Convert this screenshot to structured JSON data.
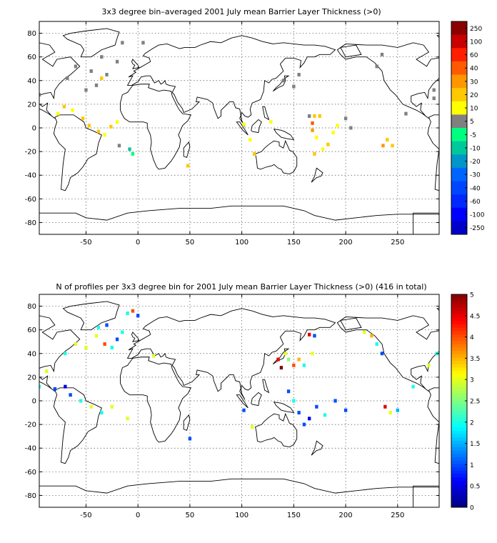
{
  "figure": {
    "panels": [
      {
        "id": "top",
        "title": "3x3 degree bin–averaged 2001 July mean Barrier Layer Thickness (>0)",
        "x_ticks": [
          "-50",
          "0",
          "50",
          "100",
          "150",
          "200",
          "250"
        ],
        "y_ticks": [
          "80",
          "60",
          "40",
          "20",
          "0",
          "-20",
          "-40",
          "-60",
          "-80"
        ],
        "colorbar": {
          "type": "discrete",
          "labels": [
            "250",
            "100",
            "60",
            "40",
            "30",
            "20",
            "10",
            "5",
            "-5",
            "-10",
            "-20",
            "-30",
            "-40",
            "-60",
            "-100",
            "-250"
          ],
          "colors": [
            "#8b0000",
            "#c80000",
            "#ff1e00",
            "#ff5a00",
            "#ff9600",
            "#ffc800",
            "#ffff00",
            "#808080",
            "#00ff80",
            "#00c89c",
            "#0096c8",
            "#0064ff",
            "#0046ff",
            "#0028ff",
            "#0000ff",
            "#0000c8"
          ]
        },
        "bins": [
          {
            "lon": -95,
            "lat": 28,
            "color": "#808080"
          },
          {
            "lon": -77,
            "lat": 12,
            "color": "#ffff00"
          },
          {
            "lon": -71,
            "lat": 18,
            "color": "#ffc800"
          },
          {
            "lon": -63,
            "lat": 15,
            "color": "#ffff00"
          },
          {
            "lon": -53,
            "lat": 8,
            "color": "#ffc800"
          },
          {
            "lon": -47,
            "lat": 2,
            "color": "#ffc800"
          },
          {
            "lon": -38,
            "lat": -3,
            "color": "#ffc800"
          },
          {
            "lon": -32,
            "lat": -6,
            "color": "#ffff00"
          },
          {
            "lon": -26,
            "lat": 1,
            "color": "#ffc800"
          },
          {
            "lon": -20,
            "lat": 5,
            "color": "#ffff00"
          },
          {
            "lon": -8,
            "lat": -18,
            "color": "#00c89c"
          },
          {
            "lon": -5,
            "lat": -22,
            "color": "#00ff80"
          },
          {
            "lon": -35,
            "lat": 42,
            "color": "#ffc800"
          },
          {
            "lon": -18,
            "lat": -15,
            "color": "#808080"
          },
          {
            "lon": -35,
            "lat": 60,
            "color": "#808080"
          },
          {
            "lon": -20,
            "lat": 56,
            "color": "#808080"
          },
          {
            "lon": -15,
            "lat": 72,
            "color": "#808080"
          },
          {
            "lon": 5,
            "lat": 72,
            "color": "#808080"
          },
          {
            "lon": -45,
            "lat": 48,
            "color": "#808080"
          },
          {
            "lon": -30,
            "lat": 45,
            "color": "#808080"
          },
          {
            "lon": -40,
            "lat": 36,
            "color": "#808080"
          },
          {
            "lon": -60,
            "lat": 52,
            "color": "#808080"
          },
          {
            "lon": -68,
            "lat": 42,
            "color": "#808080"
          },
          {
            "lon": -50,
            "lat": 32,
            "color": "#808080"
          },
          {
            "lon": 48,
            "lat": -32,
            "color": "#ffc800"
          },
          {
            "lon": 102,
            "lat": 3,
            "color": "#ffff00"
          },
          {
            "lon": 108,
            "lat": -10,
            "color": "#ffff00"
          },
          {
            "lon": 112,
            "lat": -22,
            "color": "#ffc800"
          },
          {
            "lon": 128,
            "lat": 5,
            "color": "#ffff00"
          },
          {
            "lon": 140,
            "lat": 40,
            "color": "#808080"
          },
          {
            "lon": 150,
            "lat": 35,
            "color": "#808080"
          },
          {
            "lon": 155,
            "lat": 45,
            "color": "#808080"
          },
          {
            "lon": 165,
            "lat": 10,
            "color": "#808080"
          },
          {
            "lon": 168,
            "lat": 4,
            "color": "#ff5a00"
          },
          {
            "lon": 170,
            "lat": 10,
            "color": "#ffc800"
          },
          {
            "lon": 175,
            "lat": 10,
            "color": "#ffc800"
          },
          {
            "lon": 168,
            "lat": -2,
            "color": "#ff9600"
          },
          {
            "lon": 172,
            "lat": -8,
            "color": "#ffff00"
          },
          {
            "lon": 178,
            "lat": -18,
            "color": "#ffff00"
          },
          {
            "lon": 183,
            "lat": -14,
            "color": "#ffc800"
          },
          {
            "lon": 188,
            "lat": -4,
            "color": "#ffff00"
          },
          {
            "lon": 192,
            "lat": 2,
            "color": "#ffff00"
          },
          {
            "lon": 200,
            "lat": 8,
            "color": "#808080"
          },
          {
            "lon": 205,
            "lat": 0,
            "color": "#808080"
          },
          {
            "lon": 170,
            "lat": -22,
            "color": "#ffc800"
          },
          {
            "lon": 240,
            "lat": -10,
            "color": "#ffc800"
          },
          {
            "lon": 236,
            "lat": -15,
            "color": "#ff9600"
          },
          {
            "lon": 245,
            "lat": -15,
            "color": "#ffc800"
          },
          {
            "lon": 258,
            "lat": 12,
            "color": "#808080"
          },
          {
            "lon": 235,
            "lat": 62,
            "color": "#808080"
          },
          {
            "lon": 230,
            "lat": 52,
            "color": "#808080"
          },
          {
            "lon": 285,
            "lat": 25,
            "color": "#808080"
          },
          {
            "lon": 285,
            "lat": 32,
            "color": "#808080"
          }
        ]
      },
      {
        "id": "bottom",
        "title": "N of profiles per 3x3 degree bin for 2001 July mean Barrier Layer Thickness (>0) (416 in total)",
        "x_ticks": [
          "-50",
          "0",
          "50",
          "100",
          "150",
          "200",
          "250"
        ],
        "y_ticks": [
          "80",
          "60",
          "40",
          "20",
          "0",
          "-20",
          "-40",
          "-60",
          "-80"
        ],
        "colorbar": {
          "type": "continuous",
          "labels": [
            "5",
            "4.5",
            "4",
            "3.5",
            "3",
            "2.5",
            "2",
            "1.5",
            "1",
            "0.5",
            "0"
          ],
          "min": 0,
          "max": 5
        },
        "bins": [
          {
            "lon": -10,
            "lat": 74,
            "n": 2
          },
          {
            "lon": -5,
            "lat": 76,
            "n": 4
          },
          {
            "lon": 0,
            "lat": 72,
            "n": 1
          },
          {
            "lon": -38,
            "lat": 62,
            "n": 2
          },
          {
            "lon": -30,
            "lat": 64,
            "n": 1
          },
          {
            "lon": -40,
            "lat": 55,
            "n": 3
          },
          {
            "lon": -32,
            "lat": 48,
            "n": 4
          },
          {
            "lon": -25,
            "lat": 45,
            "n": 2
          },
          {
            "lon": -20,
            "lat": 52,
            "n": 1
          },
          {
            "lon": -15,
            "lat": 58,
            "n": 2
          },
          {
            "lon": -50,
            "lat": 45,
            "n": 3
          },
          {
            "lon": -60,
            "lat": 48,
            "n": 3
          },
          {
            "lon": -70,
            "lat": 40,
            "n": 2
          },
          {
            "lon": -88,
            "lat": 25,
            "n": 3
          },
          {
            "lon": -95,
            "lat": 12,
            "n": 2
          },
          {
            "lon": -80,
            "lat": 10,
            "n": 1
          },
          {
            "lon": -70,
            "lat": 12,
            "n": 0.5
          },
          {
            "lon": -65,
            "lat": 5,
            "n": 1
          },
          {
            "lon": -55,
            "lat": 0,
            "n": 2
          },
          {
            "lon": -45,
            "lat": -5,
            "n": 3
          },
          {
            "lon": -35,
            "lat": -10,
            "n": 2
          },
          {
            "lon": -25,
            "lat": -5,
            "n": 3
          },
          {
            "lon": -10,
            "lat": -15,
            "n": 3
          },
          {
            "lon": 15,
            "lat": 38,
            "n": 3
          },
          {
            "lon": 50,
            "lat": -32,
            "n": 1
          },
          {
            "lon": 102,
            "lat": -8,
            "n": 1
          },
          {
            "lon": 110,
            "lat": -22,
            "n": 3
          },
          {
            "lon": 135,
            "lat": 35,
            "n": 4.5
          },
          {
            "lon": 138,
            "lat": 28,
            "n": 5
          },
          {
            "lon": 142,
            "lat": 40,
            "n": 3
          },
          {
            "lon": 145,
            "lat": 35,
            "n": 2.5
          },
          {
            "lon": 150,
            "lat": 30,
            "n": 4
          },
          {
            "lon": 155,
            "lat": 35,
            "n": 3.5
          },
          {
            "lon": 160,
            "lat": 30,
            "n": 2
          },
          {
            "lon": 168,
            "lat": 40,
            "n": 3
          },
          {
            "lon": 165,
            "lat": 56,
            "n": 4.5
          },
          {
            "lon": 170,
            "lat": 55,
            "n": 1
          },
          {
            "lon": 145,
            "lat": 8,
            "n": 1
          },
          {
            "lon": 150,
            "lat": 0,
            "n": 2
          },
          {
            "lon": 155,
            "lat": -10,
            "n": 1
          },
          {
            "lon": 160,
            "lat": -20,
            "n": 1
          },
          {
            "lon": 165,
            "lat": -15,
            "n": 0.5
          },
          {
            "lon": 172,
            "lat": -5,
            "n": 1
          },
          {
            "lon": 180,
            "lat": -12,
            "n": 2
          },
          {
            "lon": 190,
            "lat": 0,
            "n": 1
          },
          {
            "lon": 200,
            "lat": -8,
            "n": 1
          },
          {
            "lon": 218,
            "lat": 58,
            "n": 3
          },
          {
            "lon": 225,
            "lat": 55,
            "n": 3.5
          },
          {
            "lon": 230,
            "lat": 48,
            "n": 2
          },
          {
            "lon": 235,
            "lat": 40,
            "n": 1
          },
          {
            "lon": 238,
            "lat": -5,
            "n": 4.5
          },
          {
            "lon": 243,
            "lat": -10,
            "n": 3
          },
          {
            "lon": 250,
            "lat": -8,
            "n": 1.5
          },
          {
            "lon": 265,
            "lat": 12,
            "n": 2
          },
          {
            "lon": 280,
            "lat": 30,
            "n": 3
          },
          {
            "lon": 288,
            "lat": 40,
            "n": 2
          }
        ]
      }
    ]
  }
}
